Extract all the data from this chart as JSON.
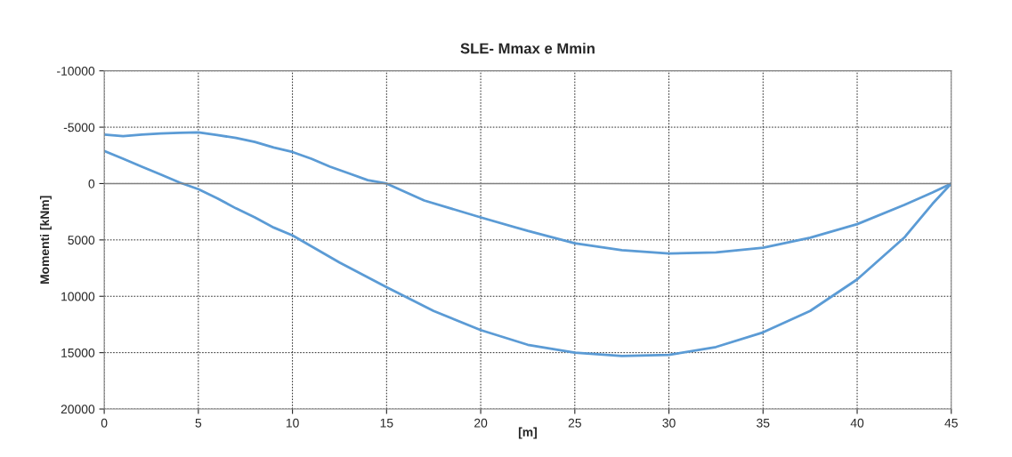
{
  "chart_data": {
    "type": "line",
    "title": "SLE- Mmax e Mmin",
    "xlabel": "[m]",
    "ylabel": "Momenti [kNm]",
    "xlim": [
      0,
      45
    ],
    "xticks": [
      0,
      5,
      10,
      15,
      20,
      25,
      30,
      35,
      40,
      45
    ],
    "ylim": [
      20000,
      -10000
    ],
    "yticks": [
      -10000,
      -5000,
      0,
      5000,
      10000,
      15000,
      20000
    ],
    "grid": true,
    "marker": "none",
    "line_style": "solid",
    "series": [
      {
        "color": "#5b9bd5",
        "x": [
          0,
          1,
          2,
          3,
          4,
          5,
          6,
          7,
          8,
          9,
          10,
          11,
          12,
          13,
          14,
          15,
          17,
          20,
          22.5,
          25,
          27.5,
          30,
          32.5,
          35,
          37.5,
          40,
          42.5,
          44,
          45
        ],
        "values": [
          -4350,
          -4200,
          -4350,
          -4450,
          -4500,
          -4550,
          -4300,
          -4050,
          -3700,
          -3200,
          -2800,
          -2200,
          -1500,
          -900,
          -300,
          0,
          1500,
          3000,
          4200,
          5300,
          5900,
          6200,
          6100,
          5700,
          4800,
          3600,
          1900,
          800,
          0
        ]
      },
      {
        "color": "#5b9bd5",
        "x": [
          0,
          1,
          2,
          3,
          4,
          5,
          6,
          7,
          8,
          9,
          10,
          12.5,
          15,
          17.5,
          20,
          22.5,
          25,
          27.5,
          30,
          32.5,
          35,
          37.5,
          40,
          42.5,
          44,
          45
        ],
        "values": [
          -2900,
          -2200,
          -1500,
          -800,
          -100,
          500,
          1300,
          2200,
          3000,
          3900,
          4600,
          7000,
          9200,
          11300,
          13000,
          14300,
          15000,
          15300,
          15200,
          14500,
          13200,
          11300,
          8500,
          4800,
          1800,
          0
        ]
      }
    ]
  }
}
